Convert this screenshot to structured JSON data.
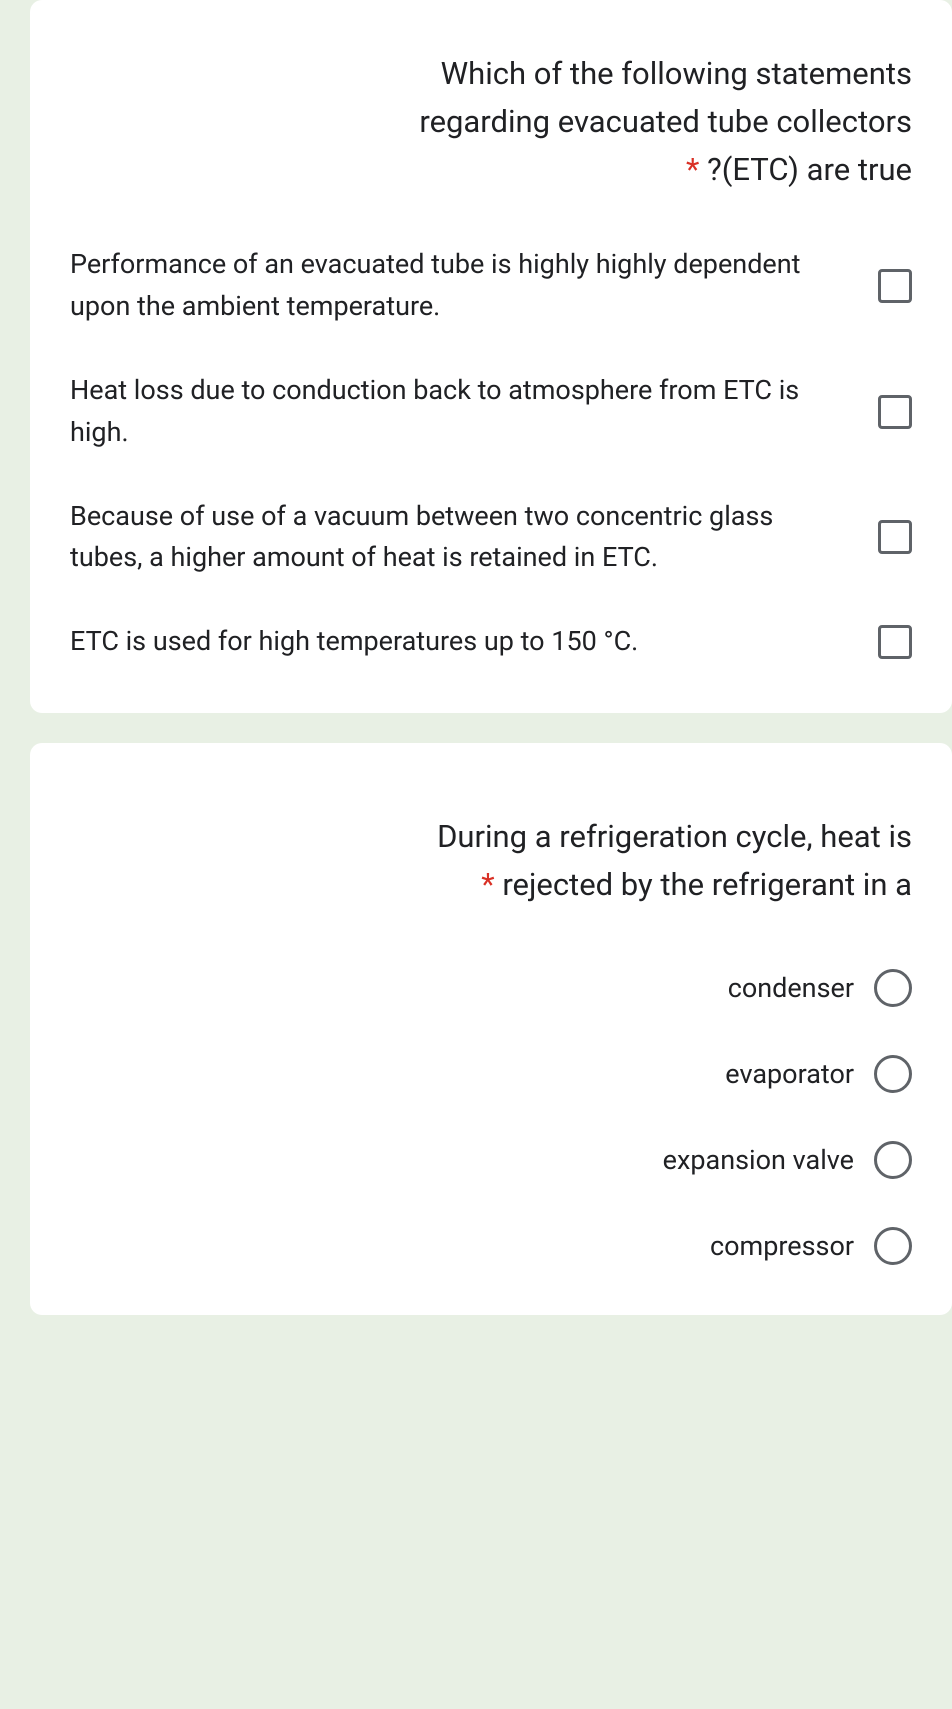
{
  "q1": {
    "title_line1": "Which of the following statements",
    "title_line2": "regarding evacuated tube collectors",
    "title_line3_suffix": "?(ETC) are true",
    "options": [
      "Performance of an evacuated tube is highly highly dependent upon the ambient temperature.",
      "Heat loss due to conduction back to atmosphere from ETC is high.",
      "Because of use of a vacuum between two concentric glass tubes, a higher amount of heat is retained in ETC.",
      "ETC is used for high temperatures up to 150 °C."
    ]
  },
  "q2": {
    "title_line1": "During a refrigeration cycle, heat is",
    "title_line2_suffix": "rejected by the refrigerant in a",
    "options": [
      "condenser",
      "evaporator",
      "expansion valve",
      "compressor"
    ]
  },
  "required_marker": "*"
}
